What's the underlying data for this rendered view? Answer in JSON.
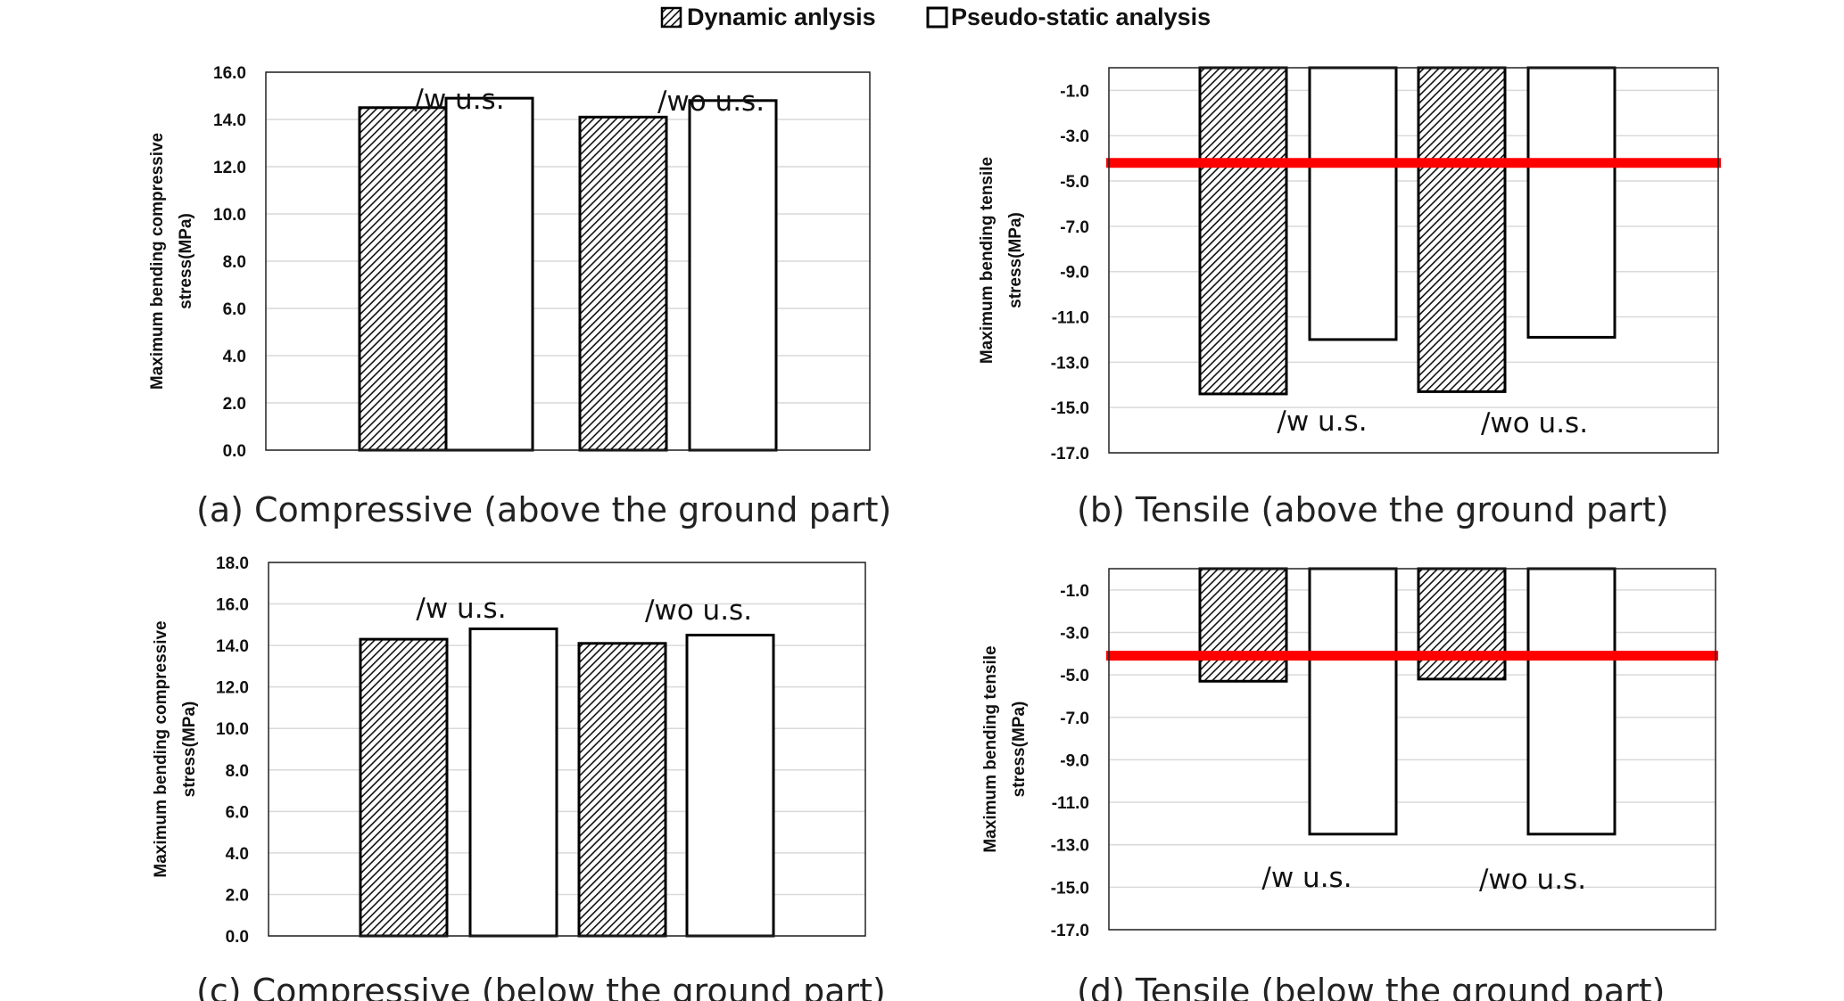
{
  "legend": [
    {
      "label": "Dynamic anlysis",
      "pattern": "hatch"
    },
    {
      "label": "Pseudo-static analysis",
      "pattern": "white"
    }
  ],
  "colors": {
    "threshold_line": "#ff0000",
    "bar_stroke": "#000000",
    "hatch_fill": "#111111",
    "gridline": "#d9d9d9"
  },
  "chart_data": [
    {
      "type": "bar",
      "caption": "(a) Compressive (above the ground part)",
      "ylabel": [
        "Maximum bending compressive",
        "stress(MPa)"
      ],
      "ylim": [
        0,
        16
      ],
      "yticks": [
        "16.0",
        "14.0",
        "12.0",
        "10.0",
        "8.0",
        "6.0",
        "4.0",
        "2.0",
        "0.0"
      ],
      "tick_values": [
        16,
        14,
        12,
        10,
        8,
        6,
        4,
        2,
        0
      ],
      "categories": [
        "/w u.s.",
        "/wo u.s."
      ],
      "series": [
        {
          "name": "Dynamic anlysis",
          "values": [
            14.5,
            14.1
          ]
        },
        {
          "name": "Pseudo-static analysis",
          "values": [
            14.9,
            14.8
          ]
        }
      ],
      "threshold": null
    },
    {
      "type": "bar",
      "caption": "(b) Tensile (above the ground part)",
      "ylabel": [
        "Maximum bending tensile",
        "stress(MPa)"
      ],
      "ylim": [
        -17,
        0
      ],
      "yticks": [
        "-1.0",
        "-3.0",
        "-5.0",
        "-7.0",
        "-9.0",
        "-11.0",
        "-13.0",
        "-15.0",
        "-17.0"
      ],
      "tick_values": [
        -1,
        -3,
        -5,
        -7,
        -9,
        -11,
        -13,
        -15,
        -17
      ],
      "categories": [
        "/w u.s.",
        "/wo u.s."
      ],
      "series": [
        {
          "name": "Dynamic anlysis",
          "values": [
            -14.4,
            -14.3
          ]
        },
        {
          "name": "Pseudo-static analysis",
          "values": [
            -12.0,
            -11.9
          ]
        }
      ],
      "threshold": -4.2
    },
    {
      "type": "bar",
      "caption": "(c) Compressive (below the ground part)",
      "ylabel": [
        "Maximum bending compressive",
        "stress(MPa)"
      ],
      "ylim": [
        0,
        18
      ],
      "yticks": [
        "18.0",
        "16.0",
        "14.0",
        "12.0",
        "10.0",
        "8.0",
        "6.0",
        "4.0",
        "2.0",
        "0.0"
      ],
      "tick_values": [
        18,
        16,
        14,
        12,
        10,
        8,
        6,
        4,
        2,
        0
      ],
      "categories": [
        "/w u.s.",
        "/wo u.s."
      ],
      "series": [
        {
          "name": "Dynamic anlysis",
          "values": [
            14.3,
            14.1
          ]
        },
        {
          "name": "Pseudo-static analysis",
          "values": [
            14.8,
            14.5
          ]
        }
      ],
      "threshold": null
    },
    {
      "type": "bar",
      "caption": "(d) Tensile (below the ground part)",
      "ylabel": [
        "Maximum bending tensile",
        "stress(MPa)"
      ],
      "ylim": [
        -17,
        0
      ],
      "yticks": [
        "-1.0",
        "-3.0",
        "-5.0",
        "-7.0",
        "-9.0",
        "-11.0",
        "-13.0",
        "-15.0",
        "-17.0"
      ],
      "tick_values": [
        -1,
        -3,
        -5,
        -7,
        -9,
        -11,
        -13,
        -15,
        -17
      ],
      "categories": [
        "/w u.s.",
        "/wo u.s."
      ],
      "series": [
        {
          "name": "Dynamic anlysis",
          "values": [
            -5.3,
            -5.2
          ]
        },
        {
          "name": "Pseudo-static analysis",
          "values": [
            -12.5,
            -12.5
          ]
        }
      ],
      "threshold": -4.1
    }
  ]
}
